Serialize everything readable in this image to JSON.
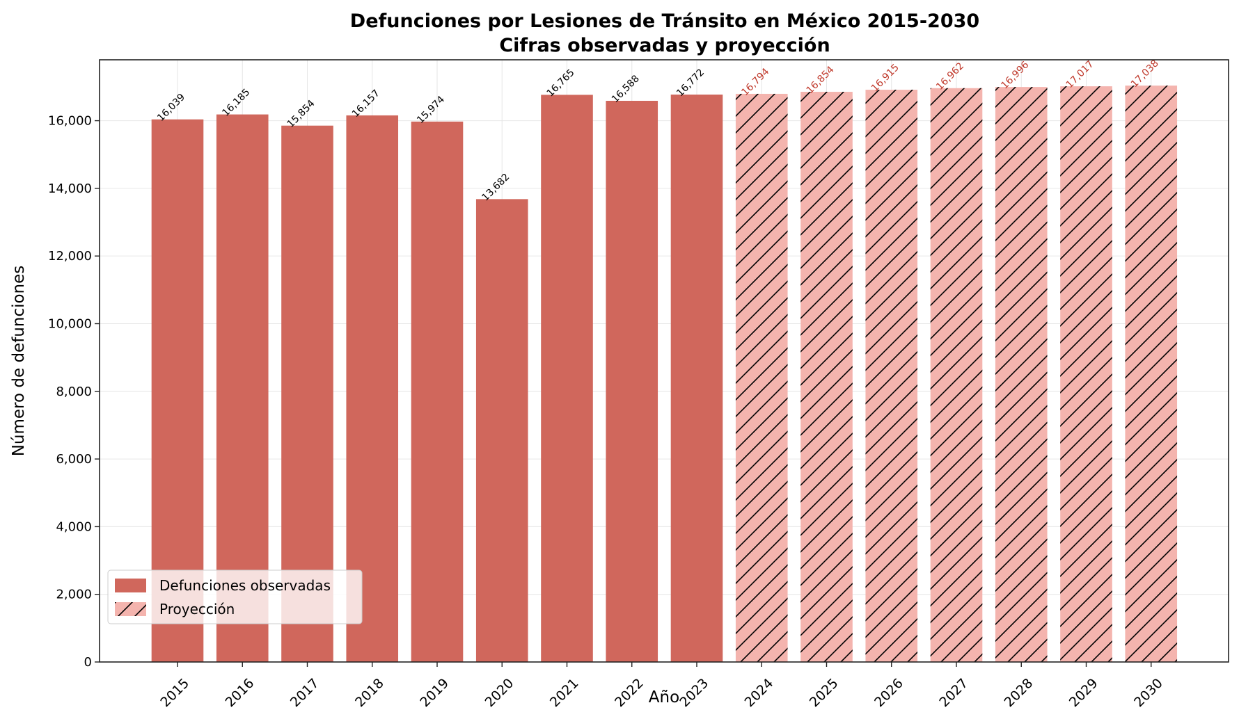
{
  "chart_data": {
    "type": "bar",
    "title": "Defunciones por Lesiones de Tránsito en México 2015-2030",
    "subtitle": "Cifras observadas y proyección",
    "xlabel": "Año",
    "ylabel": "Número de defunciones",
    "categories": [
      "2015",
      "2016",
      "2017",
      "2018",
      "2019",
      "2020",
      "2021",
      "2022",
      "2023",
      "2024",
      "2025",
      "2026",
      "2027",
      "2028",
      "2029",
      "2030"
    ],
    "series": [
      {
        "name": "Defunciones observadas",
        "color": "#d0675c",
        "hatch": "none",
        "label_color": "#000000",
        "x": [
          "2015",
          "2016",
          "2017",
          "2018",
          "2019",
          "2020",
          "2021",
          "2022",
          "2023"
        ],
        "values": [
          16039,
          16185,
          15854,
          16157,
          15974,
          13682,
          16765,
          16588,
          16772
        ]
      },
      {
        "name": "Proyección",
        "color": "#f4b4ae",
        "hatch": "diagonal",
        "label_color": "#c0392b",
        "x": [
          "2024",
          "2025",
          "2026",
          "2027",
          "2028",
          "2029",
          "2030"
        ],
        "values": [
          16794,
          16854,
          16915,
          16962,
          16996,
          17017,
          17038
        ]
      }
    ],
    "ylim": [
      0,
      17800
    ],
    "yticks": [
      0,
      2000,
      4000,
      6000,
      8000,
      10000,
      12000,
      14000,
      16000
    ],
    "ytick_labels": [
      "0",
      "2,000",
      "4,000",
      "6,000",
      "8,000",
      "10,000",
      "12,000",
      "14,000",
      "16,000"
    ],
    "grid": true,
    "legend_position": "lower-left"
  }
}
